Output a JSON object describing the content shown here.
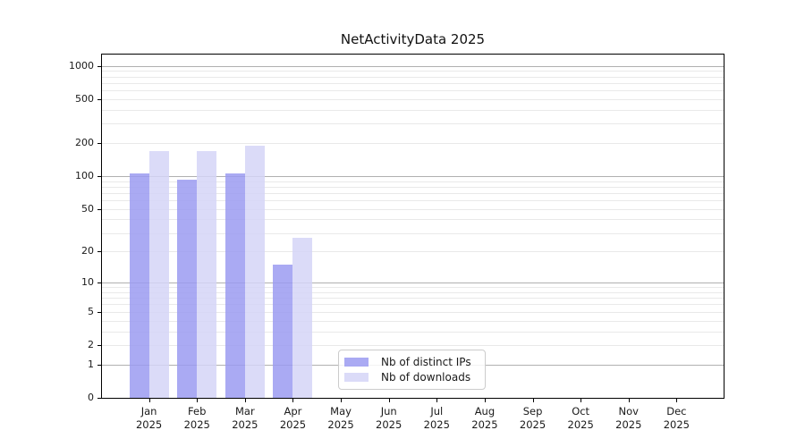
{
  "chart_data": {
    "type": "bar",
    "title": "NetActivityData 2025",
    "categories": [
      "Jan",
      "Feb",
      "Mar",
      "Apr",
      "May",
      "Jun",
      "Jul",
      "Aug",
      "Sep",
      "Oct",
      "Nov",
      "Dec"
    ],
    "x_tick_year": "2025",
    "series": [
      {
        "name": "Nb of distinct IPs",
        "color": "#9b9bf1",
        "alpha": 0.85,
        "values": [
          105,
          93,
          105,
          15,
          0,
          0,
          0,
          0,
          0,
          0,
          0,
          0
        ]
      },
      {
        "name": "Nb of downloads",
        "color": "#d5d5f7",
        "alpha": 0.85,
        "values": [
          170,
          170,
          190,
          27,
          0,
          0,
          0,
          0,
          0,
          0,
          0,
          0
        ]
      }
    ],
    "yscale": "log1p",
    "ylim": [
      0,
      1270
    ],
    "y_ticks": [
      0,
      1,
      2,
      5,
      10,
      20,
      50,
      100,
      200,
      500,
      1000
    ],
    "grid": {
      "major_values": [
        1,
        10,
        100,
        1000
      ],
      "minor_values": [
        2,
        3,
        4,
        5,
        6,
        7,
        8,
        9,
        20,
        30,
        40,
        50,
        60,
        70,
        80,
        90,
        200,
        300,
        400,
        500,
        600,
        700,
        800,
        900
      ],
      "major_color": "#b0b0b0",
      "minor_color": "#e9e9e9"
    },
    "legend_position": "lower-center",
    "axis_text_color": "#1a1a1a",
    "spine_color": "#000000"
  }
}
